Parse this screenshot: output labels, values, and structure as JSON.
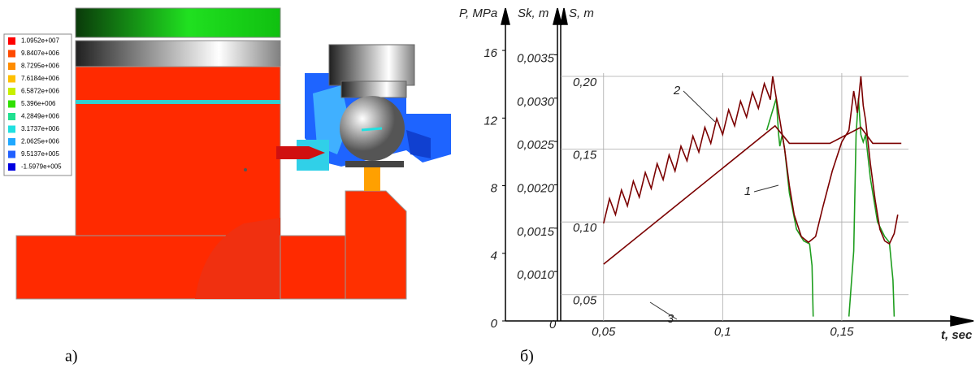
{
  "panel_a": {
    "caption": "а)",
    "legend": {
      "labels": [
        "1.0952e+007",
        "9.8407e+006",
        "8.7295e+006",
        "7.6184e+006",
        "6.5872e+006",
        "5.396e+006",
        "4.2849e+006",
        "3.1737e+006",
        "2.0625e+006",
        "9.5137e+005",
        "-1.5979e+005"
      ],
      "colors": [
        "#ff0000",
        "#ff4a00",
        "#ff8c00",
        "#ffc000",
        "#c8f000",
        "#30e000",
        "#20e090",
        "#20e0e0",
        "#20a8ff",
        "#2060ff",
        "#0000e0"
      ]
    }
  },
  "chart_data": {
    "type": "line",
    "caption": "б)",
    "x_label": "t, sec",
    "y_label": "S, m",
    "xlim": [
      0.032,
      0.178
    ],
    "xticks": [
      {
        "value": 0.05,
        "label": "0,05"
      },
      {
        "value": 0.1,
        "label": "0,1"
      },
      {
        "value": 0.15,
        "label": "0,15"
      }
    ],
    "ylim": [
      0.032,
      0.219
    ],
    "yticks": [
      {
        "value": 0.05,
        "label": "0,05"
      },
      {
        "value": 0.1,
        "label": "0,10"
      },
      {
        "value": 0.15,
        "label": "0,15"
      },
      {
        "value": 0.2,
        "label": "0,20"
      }
    ],
    "grid": true,
    "p_axis": {
      "label": "P, MPa",
      "lim": [
        0,
        16.1
      ],
      "ticks": [
        0,
        4,
        8,
        12,
        16
      ]
    },
    "sk_axis": {
      "label": "Sk, m",
      "lim": [
        0.00043,
        0.00357
      ],
      "origin_label": "0",
      "ticks": [
        {
          "value": 0.001,
          "label": "0,0010"
        },
        {
          "value": 0.0015,
          "label": "0,0015"
        },
        {
          "value": 0.002,
          "label": "0,0020"
        },
        {
          "value": 0.0025,
          "label": "0,0025"
        },
        {
          "value": 0.003,
          "label": "0,0030"
        },
        {
          "value": 0.0035,
          "label": "0,0035"
        }
      ]
    },
    "series": [
      {
        "name": "1",
        "color": "#1f9e1f",
        "x": [
          0.1185,
          0.1225,
          0.1235,
          0.124,
          0.125,
          0.126,
          0.128,
          0.131,
          0.134,
          0.1365,
          0.1375,
          0.138,
          0.139,
          0.153,
          0.155,
          0.156,
          0.157,
          0.158,
          0.159,
          0.16,
          0.162,
          0.165,
          0.168,
          0.17,
          0.1715,
          0.172
        ],
        "values": [
          0.163,
          0.185,
          0.16,
          0.152,
          0.16,
          0.15,
          0.12,
          0.095,
          0.087,
          0.085,
          0.07,
          0.035,
          null,
          0.035,
          0.08,
          0.16,
          0.185,
          0.16,
          0.155,
          0.16,
          0.13,
          0.1,
          0.09,
          0.086,
          0.06,
          0.035
        ]
      },
      {
        "name": "2",
        "color": "#7b0000",
        "x": [
          0.05,
          0.0525,
          0.055,
          0.0575,
          0.06,
          0.0625,
          0.065,
          0.0675,
          0.07,
          0.0725,
          0.075,
          0.0775,
          0.08,
          0.0825,
          0.085,
          0.0875,
          0.09,
          0.0925,
          0.095,
          0.0975,
          0.1,
          0.1025,
          0.105,
          0.1075,
          0.11,
          0.1125,
          0.115,
          0.1175,
          0.12,
          0.121,
          0.1225,
          0.124,
          0.126,
          0.128,
          0.13,
          0.133,
          0.136,
          0.139,
          0.142,
          0.146,
          0.15,
          0.153,
          0.155,
          0.1565,
          0.158,
          0.159,
          0.16,
          0.162,
          0.164,
          0.166,
          0.168,
          0.17,
          0.172,
          0.1735
        ],
        "values": [
          0.099,
          0.116,
          0.105,
          0.122,
          0.111,
          0.128,
          0.117,
          0.134,
          0.123,
          0.14,
          0.129,
          0.146,
          0.135,
          0.152,
          0.142,
          0.159,
          0.148,
          0.165,
          0.154,
          0.171,
          0.16,
          0.177,
          0.166,
          0.183,
          0.172,
          0.189,
          0.178,
          0.195,
          0.184,
          0.2,
          0.185,
          0.17,
          0.15,
          0.125,
          0.105,
          0.09,
          0.086,
          0.09,
          0.11,
          0.135,
          0.155,
          0.163,
          0.19,
          0.175,
          0.2,
          0.18,
          0.17,
          0.14,
          0.115,
          0.095,
          0.087,
          0.085,
          0.092,
          0.105
        ]
      },
      {
        "name": "3",
        "color": "#7b0000",
        "x": [
          0.05,
          0.122,
          0.128,
          0.145,
          0.158,
          0.163,
          0.175
        ],
        "values": [
          0.071,
          0.166,
          0.154,
          0.154,
          0.165,
          0.154,
          0.154
        ]
      }
    ]
  }
}
